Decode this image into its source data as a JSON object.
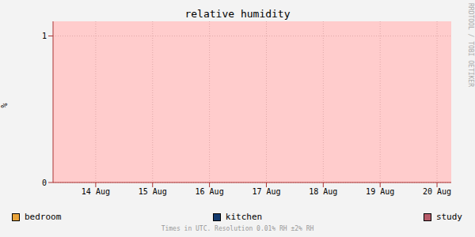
{
  "chart_data": {
    "type": "line",
    "title": "relative humidity",
    "y_label": "%",
    "annotations": [
      "Times in UTC. Resolution 0.01% RH ±2% RH",
      "RRDTOOL / TOBI OETIKER"
    ],
    "x": [
      13.75,
      20.75
    ],
    "xlim": [
      13.75,
      20.75
    ],
    "xticks": [
      {
        "value": 14.5,
        "label": "14 Aug"
      },
      {
        "value": 15.5,
        "label": "15 Aug"
      },
      {
        "value": 16.5,
        "label": "16 Aug"
      },
      {
        "value": 17.5,
        "label": "17 Aug"
      },
      {
        "value": 18.5,
        "label": "18 Aug"
      },
      {
        "value": 19.5,
        "label": "19 Aug"
      },
      {
        "value": 20.5,
        "label": "20 Aug"
      }
    ],
    "ylim": [
      0,
      1.1
    ],
    "yticks": [
      0,
      1
    ],
    "grid": true,
    "series": [
      {
        "name": "bedroom",
        "color": "#e8a33a",
        "values": [
          null,
          null
        ]
      },
      {
        "name": "kitchen",
        "color": "#133a6e",
        "values": [
          null,
          null
        ]
      },
      {
        "name": "study",
        "color": "#b85c6a",
        "values": [
          null,
          null
        ]
      }
    ]
  }
}
